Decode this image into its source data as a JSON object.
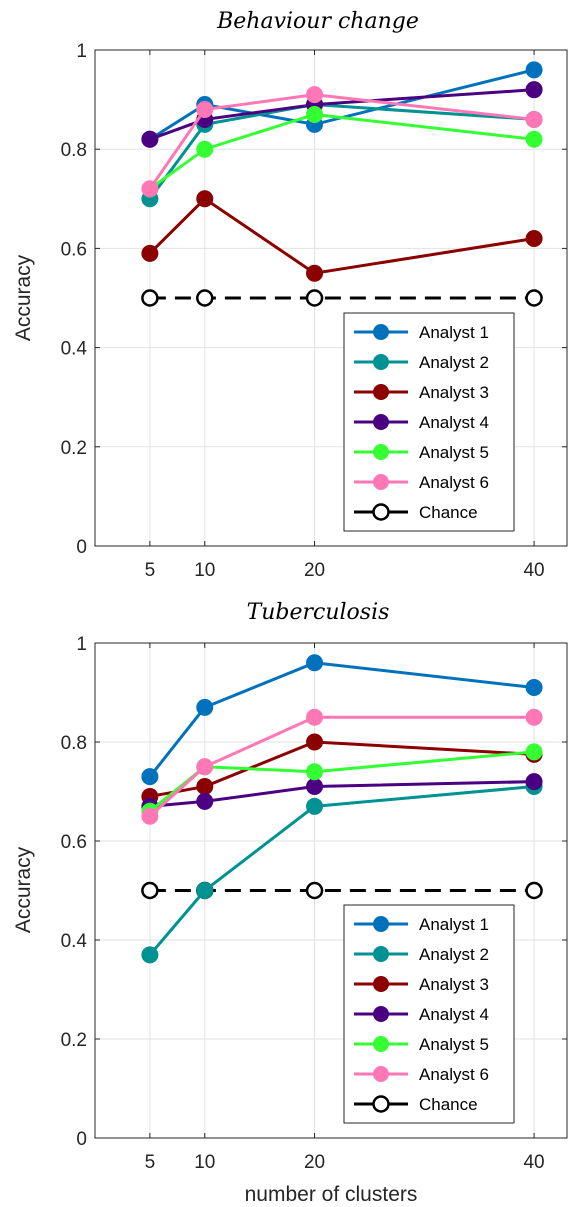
{
  "chart_data": [
    {
      "type": "line",
      "title": "Behaviour change",
      "xlabel": "",
      "ylabel": "Accuracy",
      "x": [
        5,
        10,
        20,
        40
      ],
      "x_ticks": [
        "5",
        "10",
        "20",
        "40"
      ],
      "y_ticks": [
        "0",
        "0.2",
        "0.4",
        "0.6",
        "0.8",
        "1"
      ],
      "ylim": [
        0,
        1
      ],
      "xlim": [
        0,
        43
      ],
      "grid": true,
      "legend_position": "bottom-right",
      "series": [
        {
          "name": "Analyst 1",
          "color": "#0072BD",
          "values": [
            0.82,
            0.89,
            0.85,
            0.96
          ]
        },
        {
          "name": "Analyst 2",
          "color": "#009292",
          "values": [
            0.7,
            0.85,
            0.89,
            0.86
          ]
        },
        {
          "name": "Analyst 3",
          "color": "#8B0000",
          "values": [
            0.59,
            0.7,
            0.55,
            0.62
          ]
        },
        {
          "name": "Analyst 4",
          "color": "#4B0082",
          "values": [
            0.82,
            0.86,
            0.89,
            0.92
          ]
        },
        {
          "name": "Analyst 5",
          "color": "#33FF33",
          "values": [
            0.72,
            0.8,
            0.87,
            0.82
          ]
        },
        {
          "name": "Analyst 6",
          "color": "#FF77B4",
          "values": [
            0.72,
            0.88,
            0.91,
            0.86
          ]
        },
        {
          "name": "Chance",
          "color": "#000000",
          "values": [
            0.5,
            0.5,
            0.5,
            0.5
          ],
          "dashed": true,
          "hollow": true
        }
      ]
    },
    {
      "type": "line",
      "title": "Tuberculosis",
      "xlabel": "number of clusters",
      "ylabel": "Accuracy",
      "x": [
        5,
        10,
        20,
        40
      ],
      "x_ticks": [
        "5",
        "10",
        "20",
        "40"
      ],
      "y_ticks": [
        "0",
        "0.2",
        "0.4",
        "0.6",
        "0.8",
        "1"
      ],
      "ylim": [
        0,
        1
      ],
      "xlim": [
        0,
        43
      ],
      "grid": true,
      "legend_position": "bottom-right",
      "series": [
        {
          "name": "Analyst 1",
          "color": "#0072BD",
          "values": [
            0.73,
            0.87,
            0.96,
            0.91
          ]
        },
        {
          "name": "Analyst 2",
          "color": "#009292",
          "values": [
            0.37,
            0.5,
            0.67,
            0.71
          ]
        },
        {
          "name": "Analyst 3",
          "color": "#8B0000",
          "values": [
            0.69,
            0.71,
            0.8,
            0.775
          ]
        },
        {
          "name": "Analyst 4",
          "color": "#4B0082",
          "values": [
            0.67,
            0.68,
            0.71,
            0.72
          ]
        },
        {
          "name": "Analyst 5",
          "color": "#33FF33",
          "values": [
            0.66,
            0.75,
            0.74,
            0.78
          ]
        },
        {
          "name": "Analyst 6",
          "color": "#FF77B4",
          "values": [
            0.65,
            0.75,
            0.85,
            0.85
          ]
        },
        {
          "name": "Chance",
          "color": "#000000",
          "values": [
            0.5,
            0.5,
            0.5,
            0.5
          ],
          "dashed": true,
          "hollow": true
        }
      ]
    }
  ]
}
